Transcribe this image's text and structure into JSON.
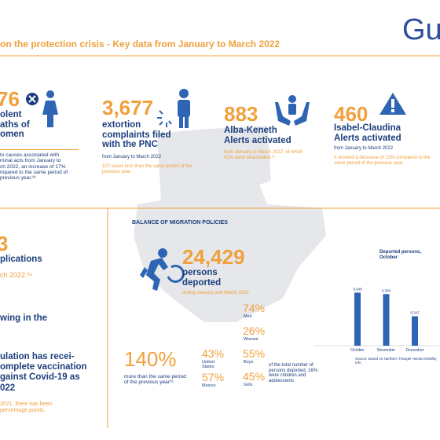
{
  "header": {
    "title": "on the protection crisis - Key data from January to March 2022",
    "logo": "Gu"
  },
  "femicide": {
    "number": "76",
    "label": "olent\naths of\nomen",
    "note": "to causes associated with\nminal acts from January to\nch 2022,  an increase of 17%\nmpared to the same period of\nprevious year.³⁶"
  },
  "extortion": {
    "number": "3,677",
    "label": "extortion\ncomplaints filed\nwith the PNC",
    "period": "from January to March 2022",
    "note": "107 cases less than the same period of the previous year."
  },
  "alba": {
    "number": "883",
    "label": "Alba-Keneth\nAlerts activated",
    "note": "from January to March 2022, of which 41% were deactivated.³⁷"
  },
  "isabel": {
    "number": "460",
    "label": "Isabel-Claudina\nAlerts activated",
    "period": "from January to March 2022",
    "note": "It showed a decrease of 13% compared to the same period of the previous year."
  },
  "left_bottom": {
    "number": "3",
    "label": "plications",
    "period": "ch 2022.³⁸",
    "heading": "wing in the",
    "vaccination": "ulation has recei-\nomplete vaccination\ngainst Covid-19 as\n022",
    "note": "2021, there has been\npercentage points."
  },
  "migration": {
    "title": "BALANCE OF MIGRATION POLICIES",
    "number": "24,429",
    "label": "persons\ndeported",
    "period": "during January and March 2022",
    "increase": "140%",
    "increase_note": "more than the same period of the previous year³⁹",
    "origin": [
      {
        "pct": "43%",
        "label": "United\nStates"
      },
      {
        "pct": "57%",
        "label": "Mexico"
      }
    ],
    "groups": [
      {
        "pct": "74%",
        "label": "Men"
      },
      {
        "pct": "26%",
        "label": "Women"
      },
      {
        "pct": "55%",
        "label": "Boys"
      },
      {
        "pct": "45%",
        "label": "Girls"
      }
    ],
    "groups_note": "of the total number of persons deported, 16% were children and adolescents"
  },
  "chart_data": {
    "type": "bar",
    "title": "Deported persons, October",
    "categories": [
      "October",
      "November",
      "December"
    ],
    "values": [
      9648,
      9389,
      5347
    ],
    "value_labels": [
      "9,648",
      "9,389",
      "5,347"
    ],
    "color": "#2e64b4",
    "ylim": [
      0,
      10000
    ],
    "source": "Source: based on Northern Triangle Human Mobility Info"
  }
}
